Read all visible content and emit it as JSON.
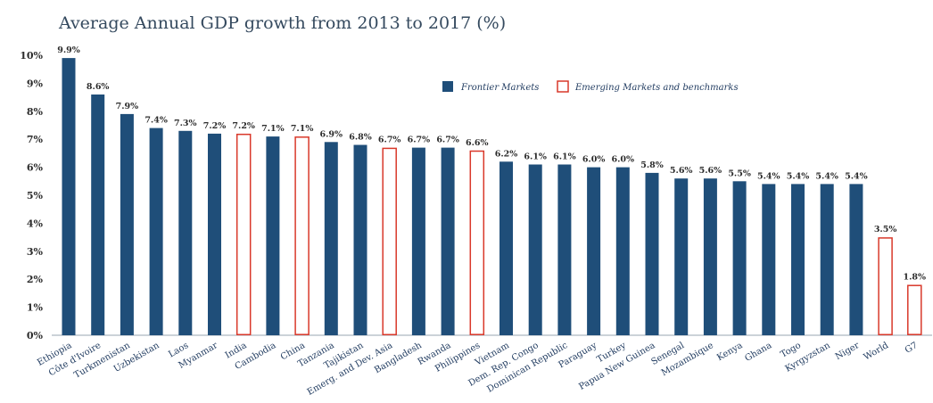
{
  "chart_data": {
    "type": "bar",
    "title": "Average Annual GDP growth from 2013 to 2017 (%)",
    "xlabel": "",
    "ylabel": "",
    "ylim": [
      0,
      10
    ],
    "yticks": [
      "0%",
      "1%",
      "2%",
      "3%",
      "4%",
      "5%",
      "6%",
      "7%",
      "8%",
      "9%",
      "10%"
    ],
    "grid": false,
    "legend_position": "top-right",
    "legend": [
      {
        "label": "Frontier Markets",
        "group": "frontier"
      },
      {
        "label": "Emerging Markets and benchmarks",
        "group": "emerging"
      }
    ],
    "colors": {
      "frontier": "#1f4e79",
      "emerging": "#d9382a"
    },
    "categories": [
      "Ethiopia",
      "Côte d'Ivoire",
      "Turkmenistan",
      "Uzbekistan",
      "Laos",
      "Myanmar",
      "India",
      "Cambodia",
      "China",
      "Tanzania",
      "Tajikistan",
      "Emerg. and Dev. Asia",
      "Bangladesh",
      "Rwanda",
      "Philippines",
      "Vietnam",
      "Dem. Rep. Congo",
      "Dominican Republic",
      "Paraguay",
      "Turkey",
      "Papua New Guinea",
      "Senegal",
      "Mozambique",
      "Kenya",
      "Ghana",
      "Togo",
      "Kyrgyzstan",
      "Niger",
      "World",
      "G7"
    ],
    "values": [
      9.9,
      8.6,
      7.9,
      7.4,
      7.3,
      7.2,
      7.2,
      7.1,
      7.1,
      6.9,
      6.8,
      6.7,
      6.7,
      6.7,
      6.6,
      6.2,
      6.1,
      6.1,
      6.0,
      6.0,
      5.8,
      5.6,
      5.6,
      5.5,
      5.4,
      5.4,
      5.4,
      5.4,
      3.5,
      1.8
    ],
    "value_labels": [
      "9.9%",
      "8.6%",
      "7.9%",
      "7.4%",
      "7.3%",
      "7.2%",
      "7.2%",
      "7.1%",
      "7.1%",
      "6.9%",
      "6.8%",
      "6.7%",
      "6.7%",
      "6.7%",
      "6.6%",
      "6.2%",
      "6.1%",
      "6.1%",
      "6.0%",
      "6.0%",
      "5.8%",
      "5.6%",
      "5.6%",
      "5.5%",
      "5.4%",
      "5.4%",
      "5.4%",
      "5.4%",
      "3.5%",
      "1.8%"
    ],
    "groups": [
      "frontier",
      "frontier",
      "frontier",
      "frontier",
      "frontier",
      "frontier",
      "emerging",
      "frontier",
      "emerging",
      "frontier",
      "frontier",
      "emerging",
      "frontier",
      "frontier",
      "emerging",
      "frontier",
      "frontier",
      "frontier",
      "frontier",
      "frontier",
      "frontier",
      "frontier",
      "frontier",
      "frontier",
      "frontier",
      "frontier",
      "frontier",
      "frontier",
      "emerging",
      "emerging"
    ]
  }
}
